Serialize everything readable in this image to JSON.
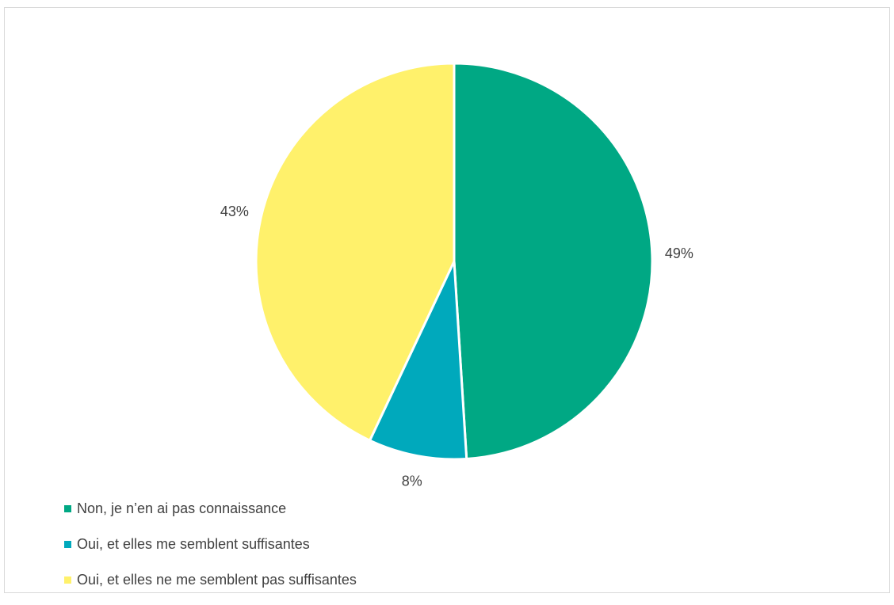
{
  "chart_data": {
    "type": "pie",
    "categories": [
      "Non, je n’en ai pas connaissance",
      "Oui, et elles me semblent suffisantes",
      "Oui, et elles ne me semblent pas suffisantes"
    ],
    "values": [
      49,
      8,
      43
    ],
    "data_labels": [
      "49%",
      "8%",
      "43%"
    ],
    "colors": [
      "#00A884",
      "#00A9BC",
      "#FFF16B"
    ],
    "title": "",
    "legend_position": "bottom-left",
    "start_angle": "12 o'clock, clockwise"
  }
}
